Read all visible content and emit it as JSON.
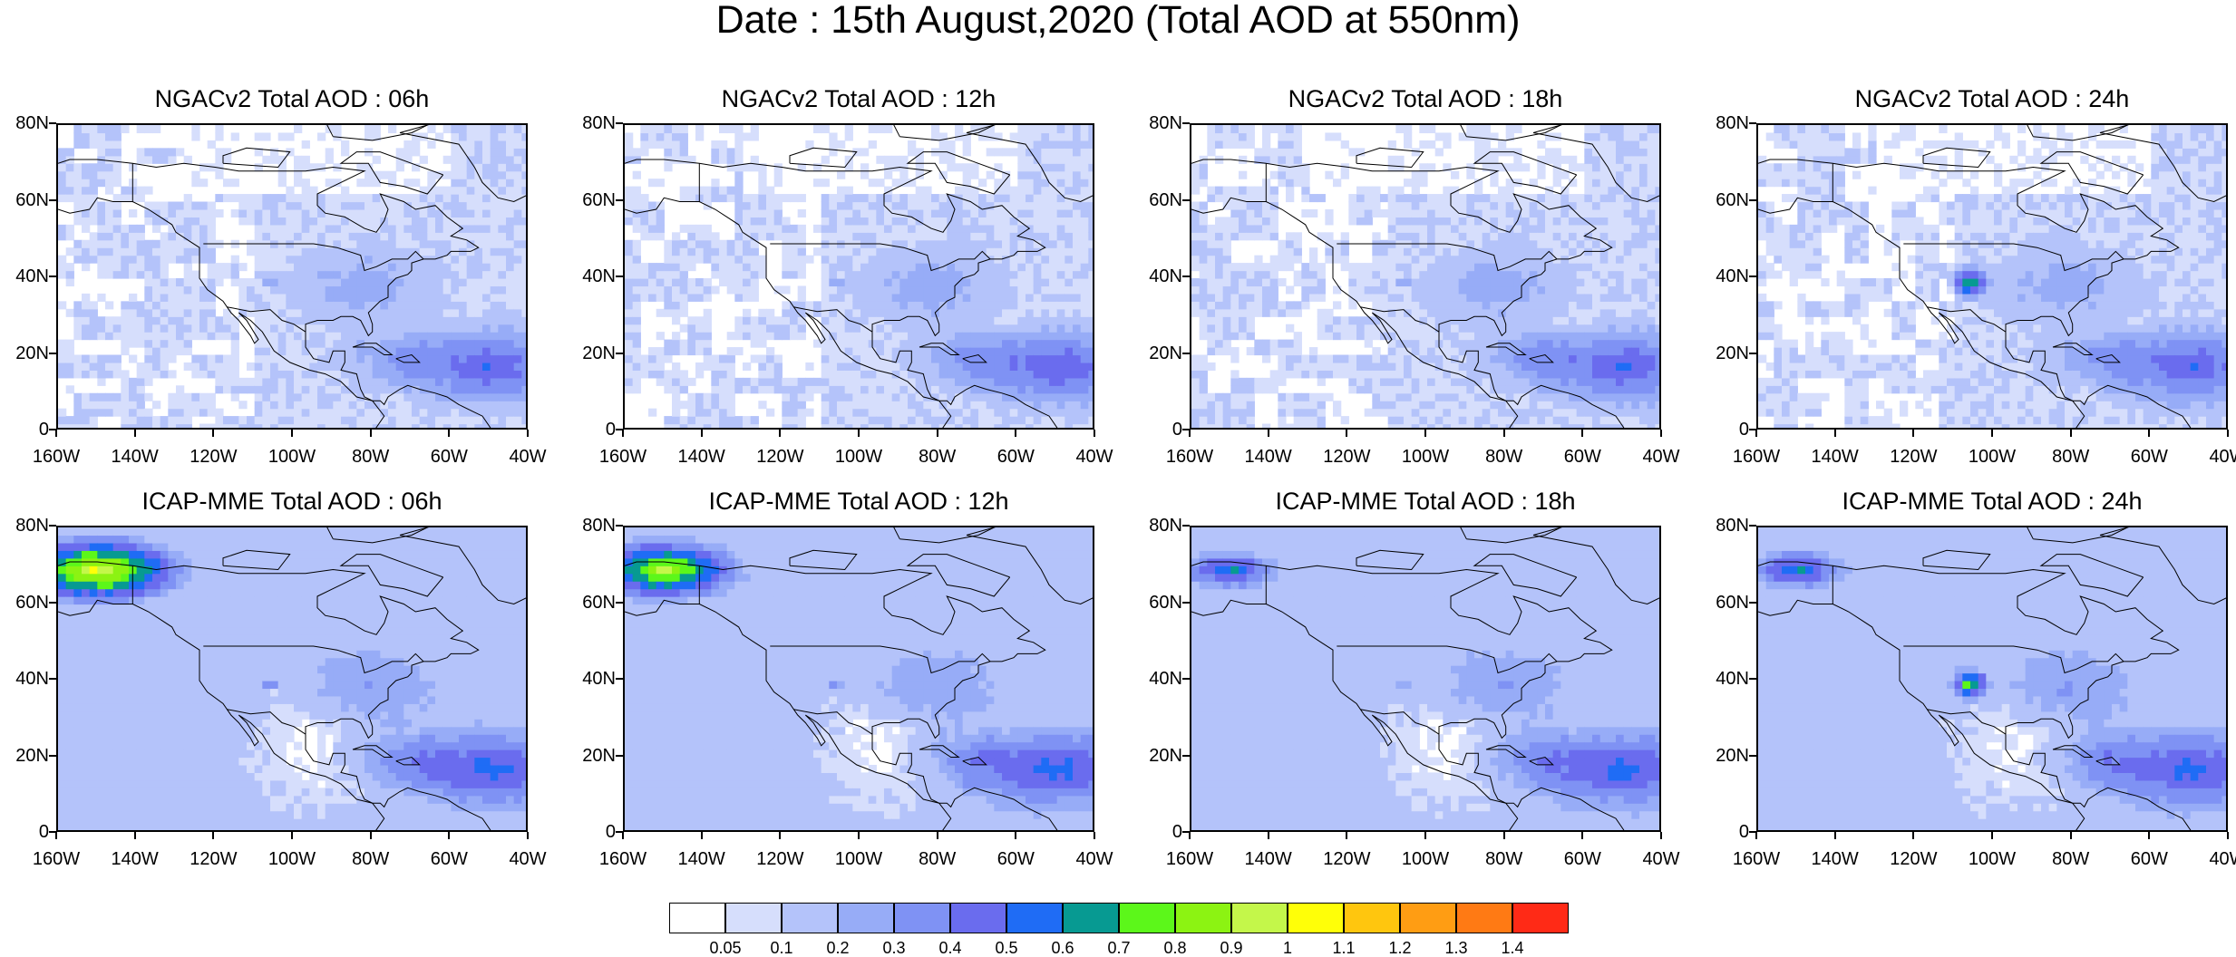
{
  "main_title": "Date : 15th August,2020 (Total AOD at 550nm)",
  "panels": [
    {
      "title": "NGACv2 Total AOD : 06h",
      "model": "NGACv2"
    },
    {
      "title": "NGACv2 Total AOD : 12h",
      "model": "NGACv2"
    },
    {
      "title": "NGACv2 Total AOD : 18h",
      "model": "NGACv2"
    },
    {
      "title": "NGACv2 Total AOD : 24h",
      "model": "NGACv2"
    },
    {
      "title": "ICAP-MME Total AOD : 06h",
      "model": "ICAP"
    },
    {
      "title": "ICAP-MME Total AOD : 12h",
      "model": "ICAP"
    },
    {
      "title": "ICAP-MME Total AOD : 18h",
      "model": "ICAP"
    },
    {
      "title": "ICAP-MME Total AOD : 24h",
      "model": "ICAP"
    }
  ],
  "y_ticks": [
    "80N",
    "60N",
    "40N",
    "20N",
    "0"
  ],
  "x_ticks": [
    "160W",
    "140W",
    "120W",
    "100W",
    "80W",
    "60W",
    "40W"
  ],
  "legend": {
    "colors": [
      "#ffffff",
      "#d6defc",
      "#b4c3fa",
      "#97acf7",
      "#7f92f4",
      "#6a6cee",
      "#1f6cf5",
      "#079a92",
      "#5cf71a",
      "#8cf312",
      "#c4f74a",
      "#ffff08",
      "#ffc60e",
      "#ff9d13",
      "#ff7a14",
      "#ff2a16"
    ],
    "labels": [
      "0.05",
      "0.1",
      "0.2",
      "0.3",
      "0.4",
      "0.5",
      "0.6",
      "0.7",
      "0.8",
      "0.9",
      "1",
      "1.1",
      "1.2",
      "1.3",
      "1.4"
    ]
  }
}
